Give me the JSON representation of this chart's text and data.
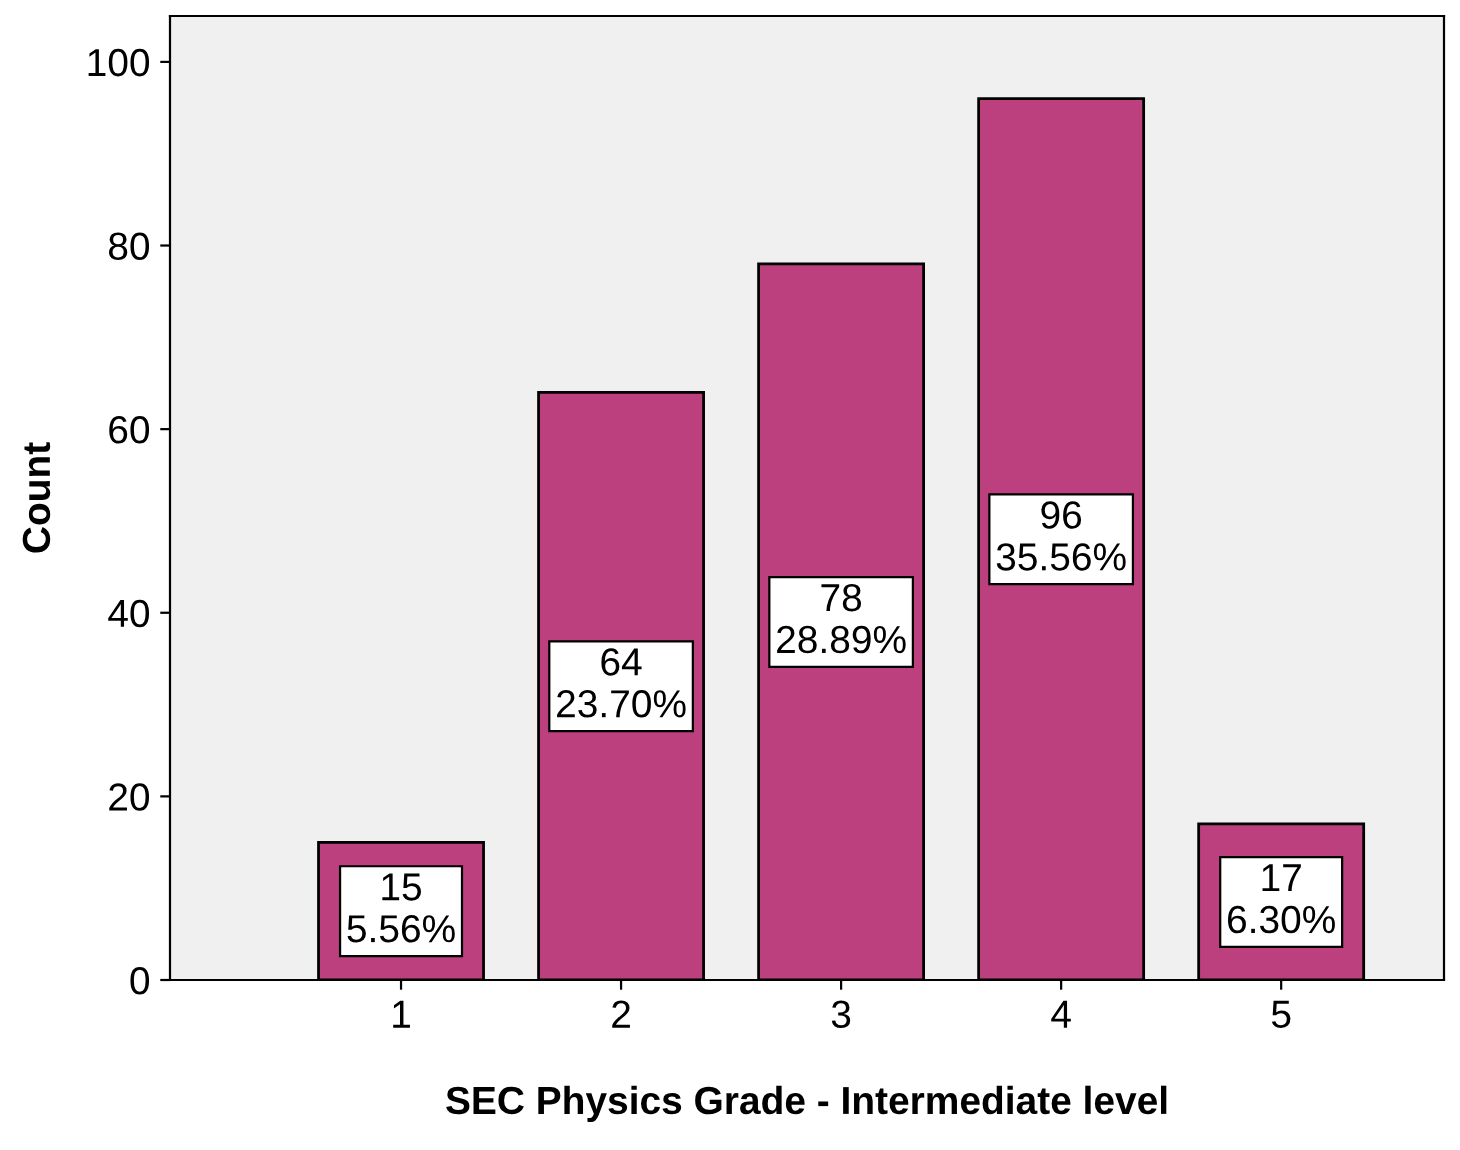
{
  "chart_data": {
    "type": "bar",
    "xlabel": "SEC Physics Grade - Intermediate level",
    "ylabel": "Count",
    "categories": [
      "1",
      "2",
      "3",
      "4",
      "5"
    ],
    "values": [
      15,
      64,
      78,
      96,
      17
    ],
    "value_labels": [
      "15\n5.56%",
      "64\n23.70%",
      "78\n28.89%",
      "96\n35.56%",
      "17\n6.30%"
    ],
    "color": "#bc3f7e",
    "ylim": [
      0,
      105
    ],
    "yticks": [
      0,
      20,
      40,
      60,
      80,
      100
    ],
    "grid": false,
    "legend": false
  }
}
